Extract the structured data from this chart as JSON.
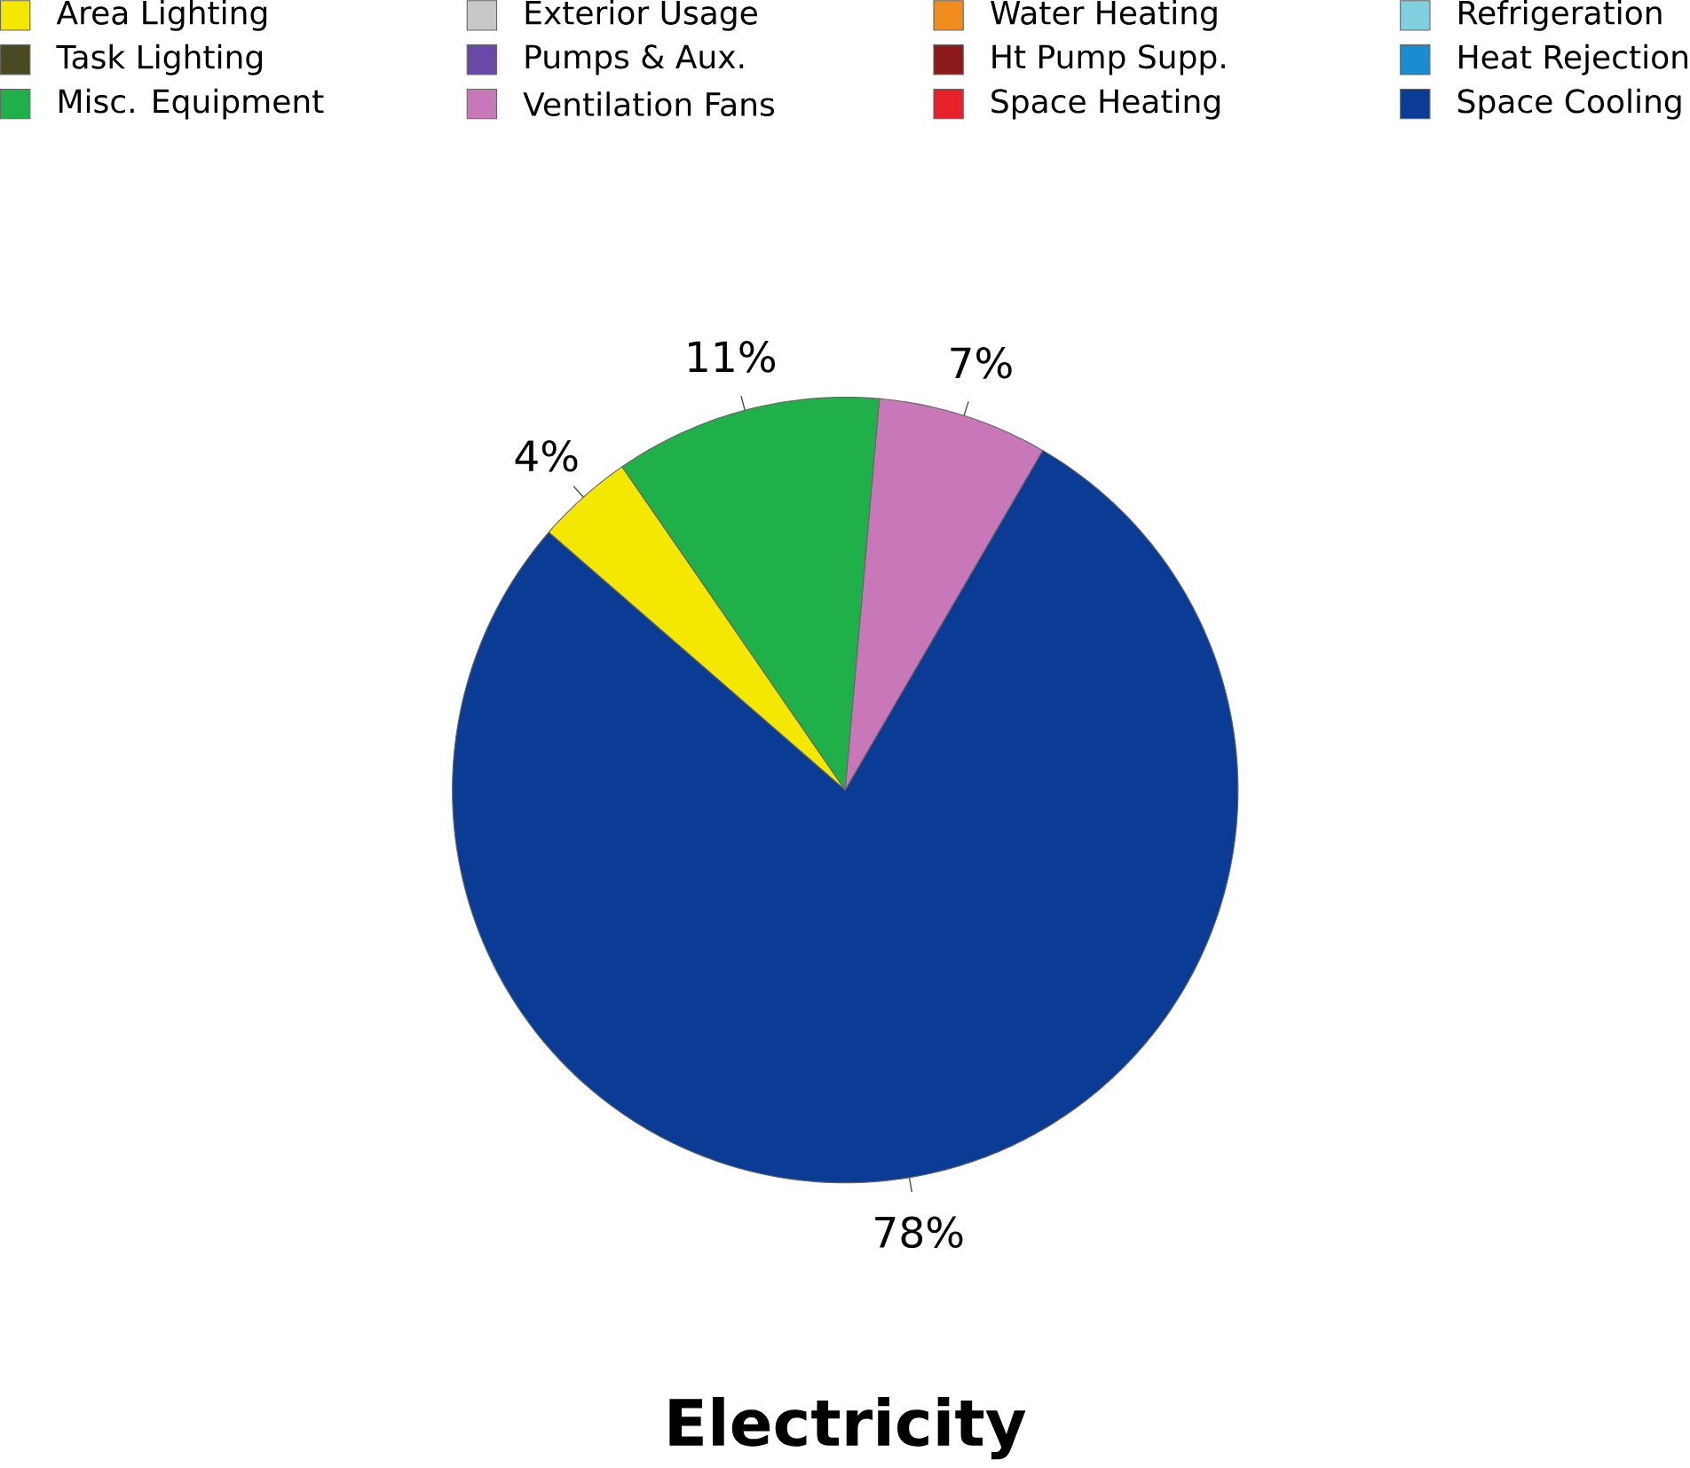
{
  "chart_data": {
    "type": "pie",
    "title": "Electricity",
    "categories": [
      "Area Lighting",
      "Task Lighting",
      "Misc. Equipment",
      "Exterior Usage",
      "Pumps & Aux.",
      "Ventilation Fans",
      "Water Heating",
      "Ht Pump Supp.",
      "Space Heating",
      "Refrigeration",
      "Heat Rejection",
      "Space Cooling"
    ],
    "values": [
      4,
      0,
      11,
      0,
      0,
      7,
      0,
      0,
      0,
      0,
      0,
      78
    ],
    "value_labels": [
      "4%",
      null,
      "11%",
      null,
      null,
      "7%",
      null,
      null,
      null,
      null,
      null,
      "78%"
    ],
    "colors": [
      "#f5e800",
      "#4a4a22",
      "#20b04a",
      "#c8c8c8",
      "#6a48a8",
      "#c878b8",
      "#f08c1e",
      "#8c1a1a",
      "#e8202a",
      "#80d0e0",
      "#1a8cd0",
      "#0a3c96"
    ],
    "legend": "top"
  }
}
